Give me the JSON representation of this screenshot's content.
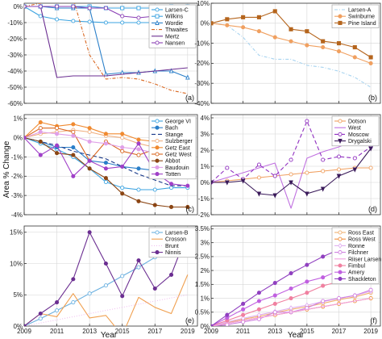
{
  "figure": {
    "ylabel": "Area % Change",
    "xlabel": "Year"
  },
  "chart_data": [
    {
      "id": "a",
      "type": "line",
      "panel_label": "(a)",
      "x": [
        2009,
        2010,
        2011,
        2012,
        2013,
        2014,
        2015,
        2016,
        2017,
        2018,
        2019
      ],
      "xlim": [
        2009,
        2019.6
      ],
      "ylim": [
        -60,
        2
      ],
      "yticks": [
        0,
        -10,
        -20,
        -30,
        -40,
        -50,
        -60
      ],
      "ytick_labels": [
        "0%",
        "-10%",
        "-20%",
        "-30%",
        "-40%",
        "-50%",
        "-60%"
      ],
      "xticks": [
        2009,
        2011,
        2013,
        2015,
        2017,
        2019
      ],
      "xtick_labels": [
        "",
        "",
        "",
        "",
        "",
        ""
      ],
      "legend": "top-right",
      "series": [
        {
          "name": "Larsen-C",
          "color": "#3ba3e0",
          "dash": "",
          "marker": "circle-open",
          "values": [
            0,
            -6,
            -8,
            -9,
            -9.5,
            -10,
            -10,
            -10,
            -10,
            -10,
            -10
          ]
        },
        {
          "name": "Wilkins",
          "color": "#3ba3e0",
          "dash": "",
          "marker": "square-open",
          "values": [
            0,
            0,
            0,
            0,
            0,
            -1,
            -1,
            -1,
            -1,
            0,
            0
          ]
        },
        {
          "name": "Wordie",
          "color": "#2a7fc9",
          "dash": "",
          "marker": "triangle-open",
          "values": [
            0,
            0,
            -1,
            -1,
            -1,
            -42,
            -41,
            -41,
            -40,
            -40,
            -44
          ]
        },
        {
          "name": "Thwaites",
          "color": "#d9661f",
          "dash": "4,2,1,2",
          "marker": "",
          "values": [
            0,
            2,
            6,
            5,
            -30,
            -45,
            -44,
            -45,
            -48,
            -52,
            -54
          ]
        },
        {
          "name": "Mertz",
          "color": "#6b2e91",
          "dash": "",
          "marker": "",
          "values": [
            0,
            0,
            -44,
            -43,
            -43,
            -43,
            -42,
            -41,
            -40,
            -39,
            -38
          ]
        },
        {
          "name": "Nansen",
          "color": "#8a3fb5",
          "dash": "",
          "marker": "circle-open",
          "values": [
            0,
            0,
            0,
            0,
            -1,
            -1,
            -6,
            -7,
            -6,
            -7,
            -6
          ]
        }
      ]
    },
    {
      "id": "b",
      "type": "line",
      "panel_label": "(b)",
      "x": [
        2009,
        2010,
        2011,
        2012,
        2013,
        2014,
        2015,
        2016,
        2017,
        2018,
        2019
      ],
      "xlim": [
        2009,
        2019.6
      ],
      "ylim": [
        -40,
        10
      ],
      "yticks": [
        10,
        0,
        -10,
        -20,
        -30,
        -40
      ],
      "ytick_labels": [
        "10%",
        "0%",
        "-10%",
        "-20%",
        "-30%",
        "-40%"
      ],
      "xticks": [
        2009,
        2011,
        2013,
        2015,
        2017,
        2019
      ],
      "xtick_labels": [
        "",
        "",
        "",
        "",
        "",
        ""
      ],
      "legend": "top-right",
      "series": [
        {
          "name": "Larsen-A",
          "color": "#a8d4f0",
          "dash": "4,2,1,2",
          "marker": "",
          "values": [
            0,
            -1,
            -7,
            -16,
            -18,
            -18,
            -21,
            -22,
            -24,
            -27,
            -32
          ]
        },
        {
          "name": "Swinburne",
          "color": "#f0a060",
          "dash": "",
          "marker": "circle-filled",
          "values": [
            0,
            -1,
            -2,
            -4,
            -7,
            -9,
            -11,
            -12,
            -14,
            -17,
            -20
          ]
        },
        {
          "name": "Pine Island",
          "color": "#b5651d",
          "dash": "",
          "marker": "square-filled",
          "values": [
            0,
            2,
            3,
            3,
            6,
            -3,
            -4,
            -9,
            -10,
            -12,
            -17
          ]
        }
      ]
    },
    {
      "id": "c",
      "type": "line",
      "panel_label": "(c)",
      "x": [
        2009,
        2010,
        2011,
        2012,
        2013,
        2014,
        2015,
        2016,
        2017,
        2018,
        2019
      ],
      "xlim": [
        2009,
        2019.6
      ],
      "ylim": [
        -4,
        1.2
      ],
      "yticks": [
        1,
        0,
        -1,
        -2,
        -3,
        -4
      ],
      "ytick_labels": [
        "1%",
        "0%",
        "-1%",
        "-2%",
        "-3%",
        "-4%"
      ],
      "xticks": [
        2009,
        2011,
        2013,
        2015,
        2017,
        2019
      ],
      "xtick_labels": [
        "",
        "",
        "",
        "",
        "",
        ""
      ],
      "legend": "top-right",
      "series": [
        {
          "name": "George VI",
          "color": "#3ba3e0",
          "dash": "",
          "marker": "circle-open",
          "values": [
            0,
            -0.3,
            -0.6,
            -1,
            -1.6,
            -2.3,
            -2.6,
            -2.7,
            -2.7,
            -2.6,
            -2.6
          ]
        },
        {
          "name": "Bach",
          "color": "#2a7fc9",
          "dash": "",
          "marker": "circle-filled",
          "values": [
            0,
            -0.2,
            -0.5,
            -0.5,
            -1.2,
            -1.3,
            -1.5,
            -1.6,
            -1.7,
            -1.6,
            -1.5
          ]
        },
        {
          "name": "Stange",
          "color": "#1a3a8a",
          "dash": "5,3",
          "marker": "",
          "values": [
            0,
            -0.2,
            -0.4,
            -0.7,
            -0.9,
            -1.1,
            -1.5,
            -1.9,
            -2.2,
            -2.5,
            -2.5
          ]
        },
        {
          "name": "Sulzberger",
          "color": "#f0b080",
          "dash": "",
          "marker": "circle-open",
          "values": [
            0,
            0.2,
            0.3,
            0.4,
            0.3,
            0.1,
            0,
            -0.3,
            -0.5,
            -0.7,
            -1
          ]
        },
        {
          "name": "Getz East",
          "color": "#f08a30",
          "dash": "",
          "marker": "circle-filled",
          "values": [
            0,
            0.8,
            0.6,
            0.7,
            0.5,
            0.2,
            0.2,
            -0.1,
            -0.2,
            -0.2,
            -0.1
          ]
        },
        {
          "name": "Getz West",
          "color": "#d9661f",
          "dash": "",
          "marker": "circle-open",
          "values": [
            0,
            0.5,
            0.5,
            0.3,
            -1.2,
            -0.2,
            -0.7,
            -0.9,
            -0.6,
            -0.5,
            -0.8
          ]
        },
        {
          "name": "Abbot",
          "color": "#8b4513",
          "dash": "",
          "marker": "circle-filled",
          "values": [
            0,
            -0.2,
            -0.8,
            -0.9,
            -1.6,
            -2.1,
            -2.9,
            -3.3,
            -3.5,
            -3.6,
            -3.6
          ]
        },
        {
          "name": "Baudouin",
          "color": "#e0a0e8",
          "dash": "",
          "marker": "circle-filled",
          "values": [
            0,
            0.3,
            0.2,
            0.1,
            -0.2,
            -0.3,
            -0.5,
            -0.6,
            -0.8,
            -0.9,
            -1
          ]
        },
        {
          "name": "Totten",
          "color": "#a040c8",
          "dash": "",
          "marker": "circle-filled",
          "values": [
            0,
            -0.9,
            -0.4,
            -2,
            -1.2,
            -1.6,
            -1.5,
            -0.3,
            -1.8,
            -2.4,
            -2.5
          ]
        }
      ]
    },
    {
      "id": "d",
      "type": "line",
      "panel_label": "(d)",
      "x": [
        2009,
        2010,
        2011,
        2012,
        2013,
        2014,
        2015,
        2016,
        2017,
        2018,
        2019
      ],
      "xlim": [
        2009,
        2019.6
      ],
      "ylim": [
        -2,
        4.2
      ],
      "yticks": [
        4,
        3,
        2,
        1,
        0,
        -1,
        -2
      ],
      "ytick_labels": [
        "4%",
        "3%",
        "2%",
        "1%",
        "0%",
        "-1%",
        "-2%"
      ],
      "xticks": [
        2009,
        2011,
        2013,
        2015,
        2017,
        2019
      ],
      "xtick_labels": [
        "",
        "",
        "",
        "",
        "",
        ""
      ],
      "legend": "top-right",
      "series": [
        {
          "name": "Dotson",
          "color": "#f0a060",
          "dash": "",
          "marker": "circle-open",
          "values": [
            0,
            0.1,
            0.2,
            0.3,
            0.4,
            0.5,
            0.6,
            0.7,
            0.8,
            0.9,
            0.9
          ]
        },
        {
          "name": "West",
          "color": "#c070e0",
          "dash": "",
          "marker": "",
          "values": [
            0,
            0.3,
            0.6,
            0.9,
            1.2,
            -1.6,
            1.5,
            1.9,
            2.2,
            2.6,
            3.1
          ]
        },
        {
          "name": "Moscow",
          "color": "#9030c0",
          "dash": "5,3",
          "marker": "circle-open",
          "values": [
            0,
            0.9,
            0.2,
            1.1,
            0.4,
            1.4,
            3.8,
            1.4,
            1.6,
            1.5,
            2.2
          ]
        },
        {
          "name": "Drygalski",
          "color": "#3a1a5a",
          "dash": "",
          "marker": "triangle-down-filled",
          "values": [
            0,
            0,
            0.1,
            -0.7,
            -0.8,
            0,
            -0.7,
            -0.4,
            0.4,
            0.8,
            2.1
          ]
        }
      ]
    },
    {
      "id": "e",
      "type": "line",
      "panel_label": "(e)",
      "x": [
        2009,
        2010,
        2011,
        2012,
        2013,
        2014,
        2015,
        2016,
        2017,
        2018,
        2019
      ],
      "xlim": [
        2009,
        2019.6
      ],
      "ylim": [
        0,
        16
      ],
      "yticks": [
        15,
        10,
        5,
        0
      ],
      "ytick_labels": [
        "15%",
        "10%",
        "5%",
        "0%"
      ],
      "xticks": [
        2009,
        2011,
        2013,
        2015,
        2017,
        2019
      ],
      "xtick_labels": [
        "2009",
        "2011",
        "2013",
        "2015",
        "2017",
        "2019"
      ],
      "legend": "top-right",
      "series": [
        {
          "name": "Larsen-B",
          "color": "#6ab0e0",
          "dash": "",
          "marker": "circle-open",
          "values": [
            0,
            1.2,
            2.5,
            3.8,
            5.2,
            6.5,
            8,
            9.4,
            11,
            12.5,
            14.3
          ]
        },
        {
          "name": "Crosson",
          "color": "#f0a050",
          "dash": "",
          "marker": "",
          "values": [
            0,
            2,
            1.5,
            5.2,
            1.3,
            1.7,
            -1.5,
            4.6,
            3,
            2,
            8.2
          ]
        },
        {
          "name": "Brunt",
          "color": "#f0c0f0",
          "dash": "1,2",
          "marker": "",
          "values": [
            0,
            0.5,
            1,
            1.5,
            2,
            2.5,
            3,
            3.5,
            4,
            4.5,
            5
          ]
        },
        {
          "name": "Ninnis",
          "color": "#6b2e91",
          "dash": "",
          "marker": "circle-filled",
          "values": [
            0,
            2,
            3.8,
            7.5,
            15,
            10,
            4.8,
            10.5,
            6,
            8.2,
            15
          ]
        }
      ]
    },
    {
      "id": "f",
      "type": "line",
      "panel_label": "(f)",
      "x": [
        2009,
        2010,
        2011,
        2012,
        2013,
        2014,
        2015,
        2016,
        2017,
        2018,
        2019
      ],
      "xlim": [
        2009,
        2019.6
      ],
      "ylim": [
        0,
        3.6
      ],
      "yticks": [
        3.5,
        3,
        2.5,
        2,
        1.5,
        1,
        0.5,
        0
      ],
      "ytick_labels": [
        "3.5%",
        "3%",
        "2.5%",
        "2%",
        "1.5%",
        "1%",
        "0.5%",
        "0%"
      ],
      "xticks": [
        2009,
        2011,
        2013,
        2015,
        2017,
        2019
      ],
      "xtick_labels": [
        "2009",
        "2011",
        "2013",
        "2015",
        "2017",
        "2019"
      ],
      "legend": "top-right",
      "series": [
        {
          "name": "Ross East",
          "color": "#f0b070",
          "dash": "",
          "marker": "circle-open",
          "values": [
            0,
            0.12,
            0.25,
            0.35,
            0.48,
            0.6,
            0.7,
            0.82,
            0.95,
            1.05,
            1.2
          ]
        },
        {
          "name": "Ross West",
          "color": "#f09040",
          "dash": "",
          "marker": "circle-open",
          "values": [
            0,
            0.1,
            0.2,
            0.3,
            0.4,
            0.5,
            0.6,
            0.7,
            0.8,
            0.9,
            1
          ]
        },
        {
          "name": "Ronne",
          "color": "#e0b0f0",
          "dash": "",
          "marker": "diamond-open",
          "values": [
            0,
            0.15,
            0.28,
            0.4,
            0.52,
            0.65,
            0.75,
            0.88,
            1,
            1.1,
            1.25
          ]
        },
        {
          "name": "Filchner",
          "color": "#d080e0",
          "dash": "",
          "marker": "circle-open",
          "values": [
            0,
            0.05,
            0.15,
            0.25,
            0.5,
            0.5,
            0.65,
            0.9,
            1,
            1.1,
            1.3
          ]
        },
        {
          "name": "Riiser Larsen",
          "color": "#f0a0e0",
          "dash": "",
          "marker": "",
          "values": [
            0,
            0.1,
            0.2,
            0.3,
            0.4,
            0.5,
            0.6,
            0.7,
            0.8,
            0.9,
            1
          ]
        },
        {
          "name": "Fimbul",
          "color": "#f080a0",
          "dash": "",
          "marker": "circle-filled",
          "values": [
            0,
            0.2,
            0.4,
            0.6,
            0.8,
            1,
            1.2,
            1.45,
            1.6,
            1.8,
            2
          ]
        },
        {
          "name": "Amery",
          "color": "#c060e0",
          "dash": "",
          "marker": "circle-filled",
          "values": [
            0,
            0.3,
            0.6,
            0.9,
            1.1,
            1.35,
            1.6,
            1.75,
            2,
            2.2,
            2.5
          ]
        },
        {
          "name": "Shackleton",
          "color": "#9040c0",
          "dash": "",
          "marker": "circle-filled",
          "values": [
            0,
            0.4,
            0.8,
            1.2,
            1.55,
            1.9,
            2.2,
            2.5,
            2.75,
            3,
            3.2
          ]
        }
      ]
    }
  ]
}
